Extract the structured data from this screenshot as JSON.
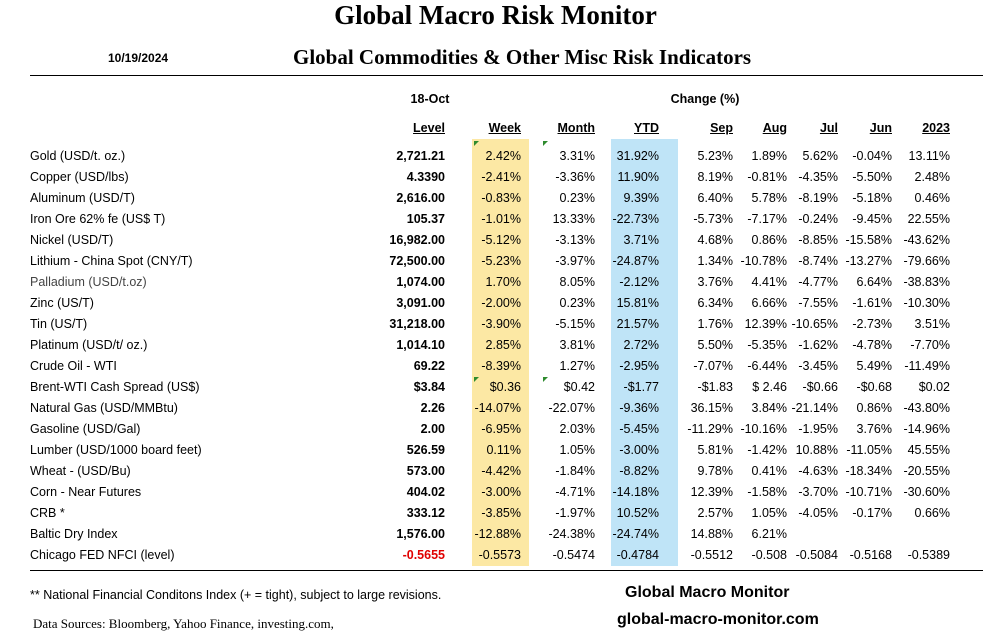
{
  "header": {
    "title": "Global Macro Risk Monitor",
    "date": "10/19/2024",
    "subtitle": "Global Commodities & Other Misc Risk Indicators"
  },
  "table": {
    "date_label": "18-Oct",
    "change_label": "Change (%)",
    "columns": [
      "Level",
      "Week",
      "Month",
      "YTD",
      "Sep",
      "Aug",
      "Jul",
      "Jun",
      "2023"
    ],
    "rows": [
      {
        "name": "Gold (USD/t. oz.)",
        "level": "2,721.21",
        "week": "2.42%",
        "month": "3.31%",
        "ytd": "31.92%",
        "sep": "5.23%",
        "aug": "1.89%",
        "jul": "5.62%",
        "jun": "-0.04%",
        "y2023": "13.11%"
      },
      {
        "name": "Copper (USD/lbs)",
        "level": "4.3390",
        "week": "-2.41%",
        "month": "-3.36%",
        "ytd": "11.90%",
        "sep": "8.19%",
        "aug": "-0.81%",
        "jul": "-4.35%",
        "jun": "-5.50%",
        "y2023": "2.48%"
      },
      {
        "name": "Aluminum (USD/T)",
        "level": "2,616.00",
        "week": "-0.83%",
        "month": "0.23%",
        "ytd": "9.39%",
        "sep": "6.40%",
        "aug": "5.78%",
        "jul": "-8.19%",
        "jun": "-5.18%",
        "y2023": "0.46%"
      },
      {
        "name": "Iron Ore 62% fe (US$ T)",
        "level": "105.37",
        "week": "-1.01%",
        "month": "13.33%",
        "ytd": "-22.73%",
        "sep": "-5.73%",
        "aug": "-7.17%",
        "jul": "-0.24%",
        "jun": "-9.45%",
        "y2023": "22.55%"
      },
      {
        "name": "Nickel (USD/T)",
        "level": "16,982.00",
        "week": "-5.12%",
        "month": "-3.13%",
        "ytd": "3.71%",
        "sep": "4.68%",
        "aug": "0.86%",
        "jul": "-8.85%",
        "jun": "-15.58%",
        "y2023": "-43.62%"
      },
      {
        "name": "Lithium - China Spot (CNY/T)",
        "level": "72,500.00",
        "week": "-5.23%",
        "month": "-3.97%",
        "ytd": "-24.87%",
        "sep": "1.34%",
        "aug": "-10.78%",
        "jul": "-8.74%",
        "jun": "-13.27%",
        "y2023": "-79.66%"
      },
      {
        "name": "Palladium (USD/t.oz)",
        "level": "1,074.00",
        "week": "1.70%",
        "month": "8.05%",
        "ytd": "-2.12%",
        "sep": "3.76%",
        "aug": "4.41%",
        "jul": "-4.77%",
        "jun": "6.64%",
        "y2023": "-38.83%"
      },
      {
        "name": "Zinc (US/T)",
        "level": "3,091.00",
        "week": "-2.00%",
        "month": "0.23%",
        "ytd": "15.81%",
        "sep": "6.34%",
        "aug": "6.66%",
        "jul": "-7.55%",
        "jun": "-1.61%",
        "y2023": "-10.30%"
      },
      {
        "name": "Tin (US/T)",
        "level": "31,218.00",
        "week": "-3.90%",
        "month": "-5.15%",
        "ytd": "21.57%",
        "sep": "1.76%",
        "aug": "12.39%",
        "jul": "-10.65%",
        "jun": "-2.73%",
        "y2023": "3.51%"
      },
      {
        "name": "Platinum (USD/t/ oz.)",
        "level": "1,014.10",
        "week": "2.85%",
        "month": "3.81%",
        "ytd": "2.72%",
        "sep": "5.50%",
        "aug": "-5.35%",
        "jul": "-1.62%",
        "jun": "-4.78%",
        "y2023": "-7.70%"
      },
      {
        "name": "Crude Oil - WTI",
        "level": "69.22",
        "week": "-8.39%",
        "month": "1.27%",
        "ytd": "-2.95%",
        "sep": "-7.07%",
        "aug": "-6.44%",
        "jul": "-3.45%",
        "jun": "5.49%",
        "y2023": "-11.49%"
      },
      {
        "name": "Brent-WTI Cash Spread (US$)",
        "level": "$3.84",
        "week": "$0.36",
        "month": "$0.42",
        "ytd": "-$1.77",
        "sep": "-$1.83",
        "aug": "$ 2.46",
        "jul": "-$0.66",
        "jun": "-$0.68",
        "y2023": "$0.02"
      },
      {
        "name": "Natural Gas  (USD/MMBtu)",
        "level": "2.26",
        "week": "-14.07%",
        "month": "-22.07%",
        "ytd": "-9.36%",
        "sep": "36.15%",
        "aug": "3.84%",
        "jul": "-21.14%",
        "jun": "0.86%",
        "y2023": "-43.80%"
      },
      {
        "name": "Gasoline (USD/Gal)",
        "level": "2.00",
        "week": "-6.95%",
        "month": "2.03%",
        "ytd": "-5.45%",
        "sep": "-11.29%",
        "aug": "-10.16%",
        "jul": "-1.95%",
        "jun": "3.76%",
        "y2023": "-14.96%"
      },
      {
        "name": "Lumber (USD/1000 board feet)",
        "level": "526.59",
        "week": "0.11%",
        "month": "1.05%",
        "ytd": "-3.00%",
        "sep": "5.81%",
        "aug": "-1.42%",
        "jul": "10.88%",
        "jun": "-11.05%",
        "y2023": "45.55%"
      },
      {
        "name": "Wheat - (USD/Bu)",
        "level": "573.00",
        "week": "-4.42%",
        "month": "-1.84%",
        "ytd": "-8.82%",
        "sep": "9.78%",
        "aug": "0.41%",
        "jul": "-4.63%",
        "jun": "-18.34%",
        "y2023": "-20.55%"
      },
      {
        "name": "Corn - Near Futures",
        "level": "404.02",
        "week": "-3.00%",
        "month": "-4.71%",
        "ytd": "-14.18%",
        "sep": "12.39%",
        "aug": "-1.58%",
        "jul": "-3.70%",
        "jun": "-10.71%",
        "y2023": "-30.60%"
      },
      {
        "name": "CRB *",
        "level": "333.12",
        "week": "-3.85%",
        "month": "-1.97%",
        "ytd": "10.52%",
        "sep": "2.57%",
        "aug": "1.05%",
        "jul": "-4.05%",
        "jun": "-0.17%",
        "y2023": "0.66%"
      },
      {
        "name": "Baltic Dry Index",
        "level": "1,576.00",
        "week": "-12.88%",
        "month": "-24.38%",
        "ytd": "-24.74%",
        "sep": "14.88%",
        "aug": "6.21%",
        "jul": "",
        "jun": "",
        "y2023": ""
      },
      {
        "name": "Chicago FED NFCI (level)",
        "level": "-0.5655",
        "week": "-0.5573",
        "month": "-0.5474",
        "ytd": "-0.4784",
        "sep": "-0.5512",
        "aug": "-0.508",
        "jul": "-0.5084",
        "jun": "-0.5168",
        "y2023": "-0.5389"
      }
    ]
  },
  "footer": {
    "footnote": "** National Financial Conditons Index (+ =  tight), subject to large revisions.",
    "sources": "Data Sources:  Bloomberg,  Yahoo Finance, investing.com,",
    "brand": "Global Macro Monitor",
    "site": "global-macro-monitor.com"
  },
  "colors": {
    "week_highlight": "#fce8a4",
    "ytd_highlight": "#bfe4f7",
    "negative_level": "#e00000",
    "comment_marker": "#2e8b2e"
  }
}
